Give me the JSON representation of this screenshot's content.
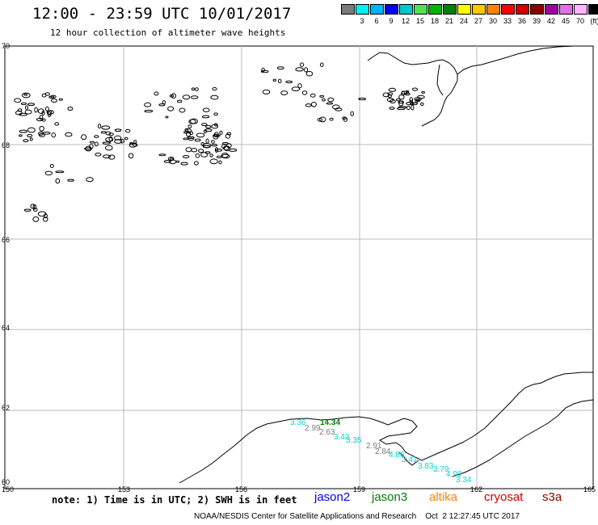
{
  "header": {
    "title": "12:00 - 23:59 UTC 10/01/2017",
    "subtitle": "12 hour collection of altimeter wave heights"
  },
  "color_scale": {
    "unit": "(ft)",
    "bins": [
      {
        "label": "",
        "color": "#7a7a7a"
      },
      {
        "label": "3",
        "color": "#00f0f0"
      },
      {
        "label": "6",
        "color": "#00b4ff"
      },
      {
        "label": "9",
        "color": "#0000ff"
      },
      {
        "label": "12",
        "color": "#00c8c8"
      },
      {
        "label": "15",
        "color": "#50e050"
      },
      {
        "label": "18",
        "color": "#00b400"
      },
      {
        "label": "21",
        "color": "#008200"
      },
      {
        "label": "24",
        "color": "#ffff00"
      },
      {
        "label": "27",
        "color": "#ffc800"
      },
      {
        "label": "30",
        "color": "#ff8200"
      },
      {
        "label": "33",
        "color": "#ff0000"
      },
      {
        "label": "36",
        "color": "#d20000"
      },
      {
        "label": "39",
        "color": "#8c0000"
      },
      {
        "label": "42",
        "color": "#a000a0"
      },
      {
        "label": "45",
        "color": "#e070e0"
      },
      {
        "label": "70",
        "color": "#ffb4ff"
      },
      {
        "label": "",
        "color": "#000000"
      }
    ]
  },
  "map": {
    "lon_ticks": [
      "150",
      "153",
      "156",
      "159",
      "162",
      "165"
    ],
    "lat_ticks": [
      "70",
      "68",
      "66",
      "64",
      "62",
      "60"
    ],
    "observations": [
      {
        "value": "3.36",
        "color": "#00d8d8"
      },
      {
        "value": "14.34",
        "color": "#008200"
      },
      {
        "value": "2.99",
        "color": "#7a7a7a"
      },
      {
        "value": "2.63",
        "color": "#7a7a7a"
      },
      {
        "value": "3.42",
        "color": "#00d8d8"
      },
      {
        "value": "3.35",
        "color": "#00d8d8"
      },
      {
        "value": "2.91",
        "color": "#7a7a7a"
      },
      {
        "value": "2.84",
        "color": "#7a7a7a"
      },
      {
        "value": "4.86",
        "color": "#00d8d8"
      },
      {
        "value": "3.41",
        "color": "#00d8d8"
      },
      {
        "value": "3.83",
        "color": "#00d8d8"
      },
      {
        "value": "3.79",
        "color": "#00d8d8"
      },
      {
        "value": "4.90",
        "color": "#00d8d8"
      },
      {
        "value": "3.34",
        "color": "#00d8d8"
      }
    ]
  },
  "notes": {
    "note": "note: 1) Time is in UTC; 2) SWH is in feet"
  },
  "satellites": [
    {
      "name": "jason2",
      "color": "#0000ff"
    },
    {
      "name": "jason3",
      "color": "#008200"
    },
    {
      "name": "altika",
      "color": "#ff8200"
    },
    {
      "name": "cryosat",
      "color": "#d20000"
    },
    {
      "name": "s3a",
      "color": "#8c0000"
    }
  ],
  "footer": {
    "credit": "NOAA/NESDIS Center for Satellite Applications and Research    Oct  2 12:27:45 UTC 2017"
  }
}
